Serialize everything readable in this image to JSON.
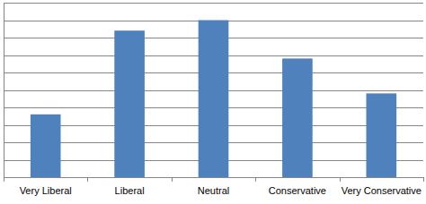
{
  "chart_data": {
    "type": "bar",
    "categories": [
      "Very Liberal",
      "Liberal",
      "Neutral",
      "Conservative",
      "Very Conservative"
    ],
    "values": [
      3.6,
      8.4,
      9.0,
      6.8,
      4.8
    ],
    "color": "#4f81bd",
    "ylim": [
      0,
      10
    ],
    "yticks": [
      0,
      1,
      2,
      3,
      4,
      5,
      6,
      7,
      8,
      9,
      10
    ],
    "grid": true,
    "tick_labels": "x"
  }
}
